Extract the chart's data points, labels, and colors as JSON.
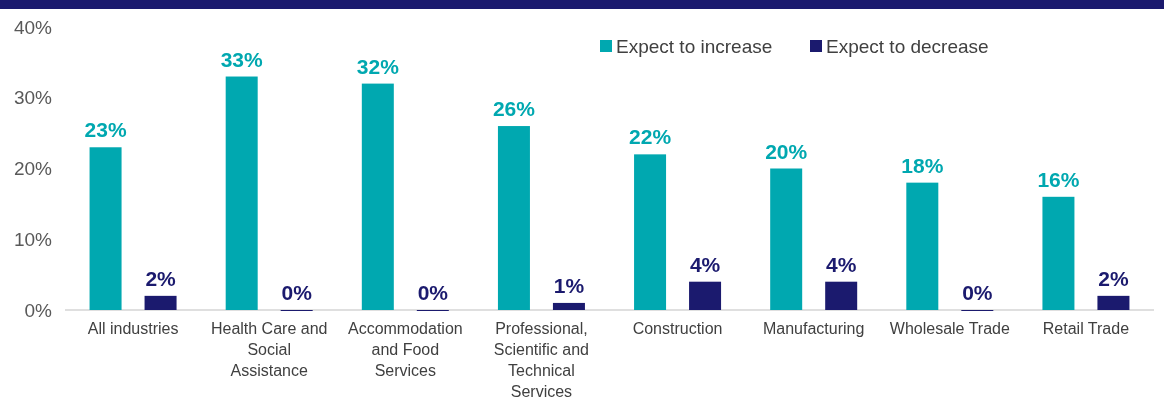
{
  "chart_data": {
    "type": "bar",
    "categories": [
      "All industries",
      "Health Care and Social Assistance",
      "Accommodation and Food Services",
      "Professional, Scientific and Technical Services",
      "Construction",
      "Manufacturing",
      "Wholesale Trade",
      "Retail Trade"
    ],
    "series": [
      {
        "name": "Expect to increase",
        "color": "#00a8b0",
        "values": [
          23,
          33,
          32,
          26,
          22,
          20,
          18,
          16
        ],
        "value_labels": [
          "23%",
          "33%",
          "32%",
          "26%",
          "22%",
          "20%",
          "18%",
          "16%"
        ]
      },
      {
        "name": "Expect to decrease",
        "color": "#1b1a6e",
        "values": [
          2,
          0,
          0,
          1,
          4,
          4,
          0,
          2
        ],
        "value_labels": [
          "2%",
          "0%",
          "0%",
          "1%",
          "4%",
          "4%",
          "0%",
          "2%"
        ]
      }
    ],
    "ylim": [
      0,
      40
    ],
    "yticks": [
      {
        "value": 0,
        "label": "0%"
      },
      {
        "value": 10,
        "label": "10%"
      },
      {
        "value": 20,
        "label": "20%"
      },
      {
        "value": 30,
        "label": "30%"
      },
      {
        "value": 40,
        "label": "40%"
      }
    ],
    "grid": false,
    "legend": "top right"
  }
}
